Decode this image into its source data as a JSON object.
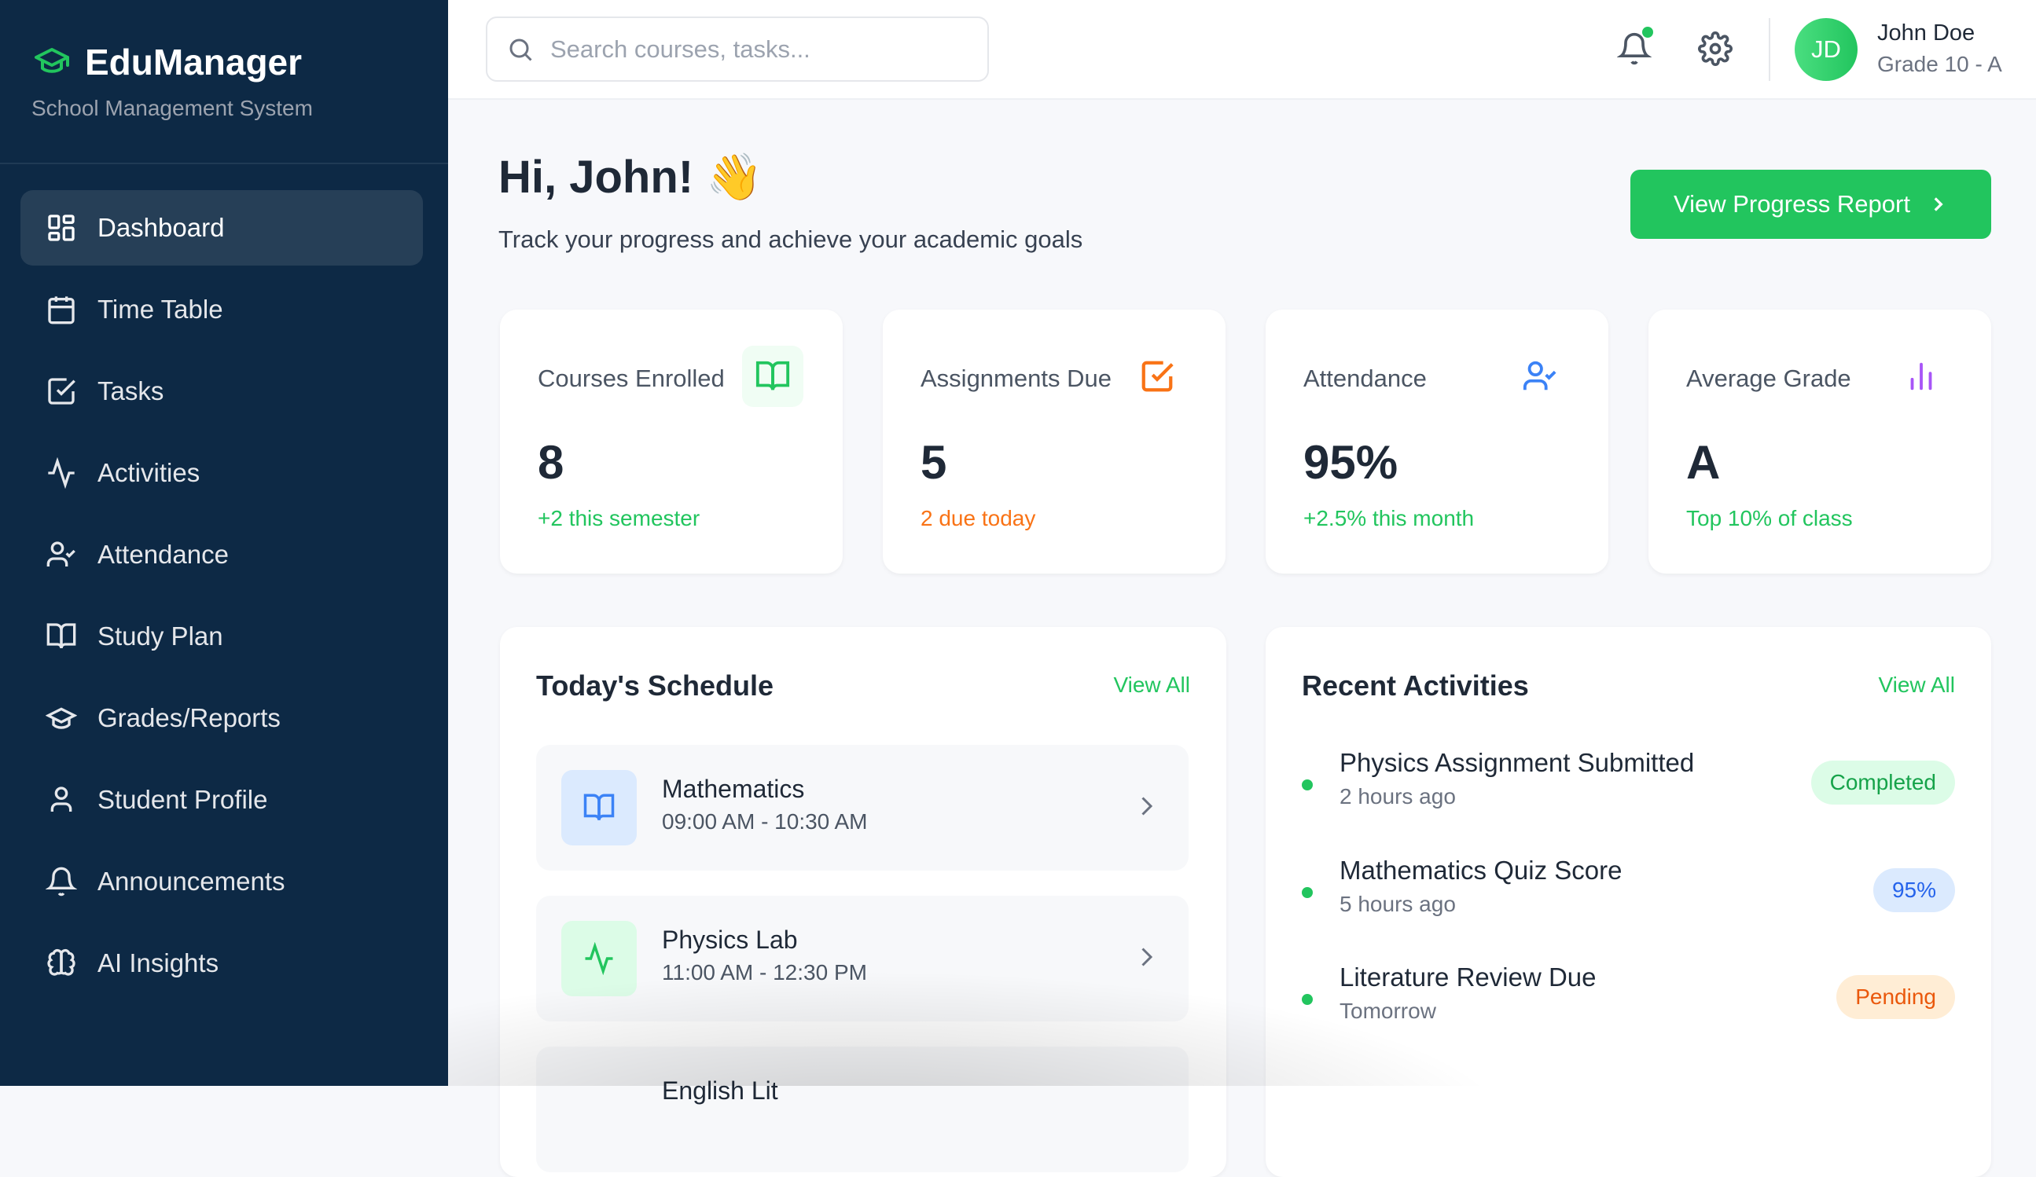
{
  "app": {
    "title": "EduManager",
    "subtitle": "School Management System"
  },
  "sidebar": {
    "items": [
      {
        "label": "Dashboard",
        "icon": "dashboard-grid-icon",
        "active": true
      },
      {
        "label": "Time Table",
        "icon": "calendar-icon"
      },
      {
        "label": "Tasks",
        "icon": "checkbox-icon"
      },
      {
        "label": "Activities",
        "icon": "activity-pulse-icon"
      },
      {
        "label": "Attendance",
        "icon": "user-check-icon"
      },
      {
        "label": "Study Plan",
        "icon": "book-open-icon"
      },
      {
        "label": "Grades/Reports",
        "icon": "graduation-cap-icon"
      },
      {
        "label": "Student Profile",
        "icon": "user-icon"
      },
      {
        "label": "Announcements",
        "icon": "bell-icon"
      },
      {
        "label": "AI Insights",
        "icon": "brain-icon"
      }
    ]
  },
  "header": {
    "search_placeholder": "Search courses, tasks...",
    "user": {
      "initials": "JD",
      "name": "John Doe",
      "grade": "Grade 10 - A"
    }
  },
  "main": {
    "greeting": "Hi, John! 👋",
    "subtitle": "Track your progress and achieve your academic goals",
    "cta": "View Progress Report",
    "stats": [
      {
        "label": "Courses Enrolled",
        "value": "8",
        "sub": "+2 this semester",
        "sub_color": "#22c55e",
        "icon": "book-open-icon",
        "icon_color": "#22c55e"
      },
      {
        "label": "Assignments Due",
        "value": "5",
        "sub": "2 due today",
        "sub_color": "#f97316",
        "icon": "checkbox-icon",
        "icon_color": "#f97316"
      },
      {
        "label": "Attendance",
        "value": "95%",
        "sub": "+2.5% this month",
        "sub_color": "#22c55e",
        "icon": "user-check-icon",
        "icon_color": "#3b82f6"
      },
      {
        "label": "Average Grade",
        "value": "A",
        "sub": "Top 10% of class",
        "sub_color": "#22c55e",
        "icon": "bar-chart-icon",
        "icon_color": "#a855f7"
      }
    ],
    "schedule": {
      "title": "Today's Schedule",
      "view_all": "View All",
      "items": [
        {
          "name": "Mathematics",
          "time": "09:00 AM - 10:30 AM",
          "icon": "book-open-icon"
        },
        {
          "name": "Physics Lab",
          "time": "11:00 AM - 12:30 PM",
          "icon": "activity-pulse-icon"
        },
        {
          "name": "English Lit",
          "time": ""
        }
      ]
    },
    "activities": {
      "title": "Recent Activities",
      "view_all": "View All",
      "items": [
        {
          "title": "Physics Assignment Submitted",
          "time": "2 hours ago",
          "badge": "Completed",
          "badge_bg": "#dcfce7",
          "badge_color": "#16a34a"
        },
        {
          "title": "Mathematics Quiz Score",
          "time": "5 hours ago",
          "badge": "95%",
          "badge_bg": "#dbeafe",
          "badge_color": "#2563eb"
        },
        {
          "title": "Literature Review Due",
          "time": "Tomorrow",
          "badge": "Pending",
          "badge_bg": "#ffedd5",
          "badge_color": "#ea580c"
        }
      ]
    }
  },
  "colors": {
    "sidebar": "#0d2945",
    "accent": "#22c55e"
  }
}
